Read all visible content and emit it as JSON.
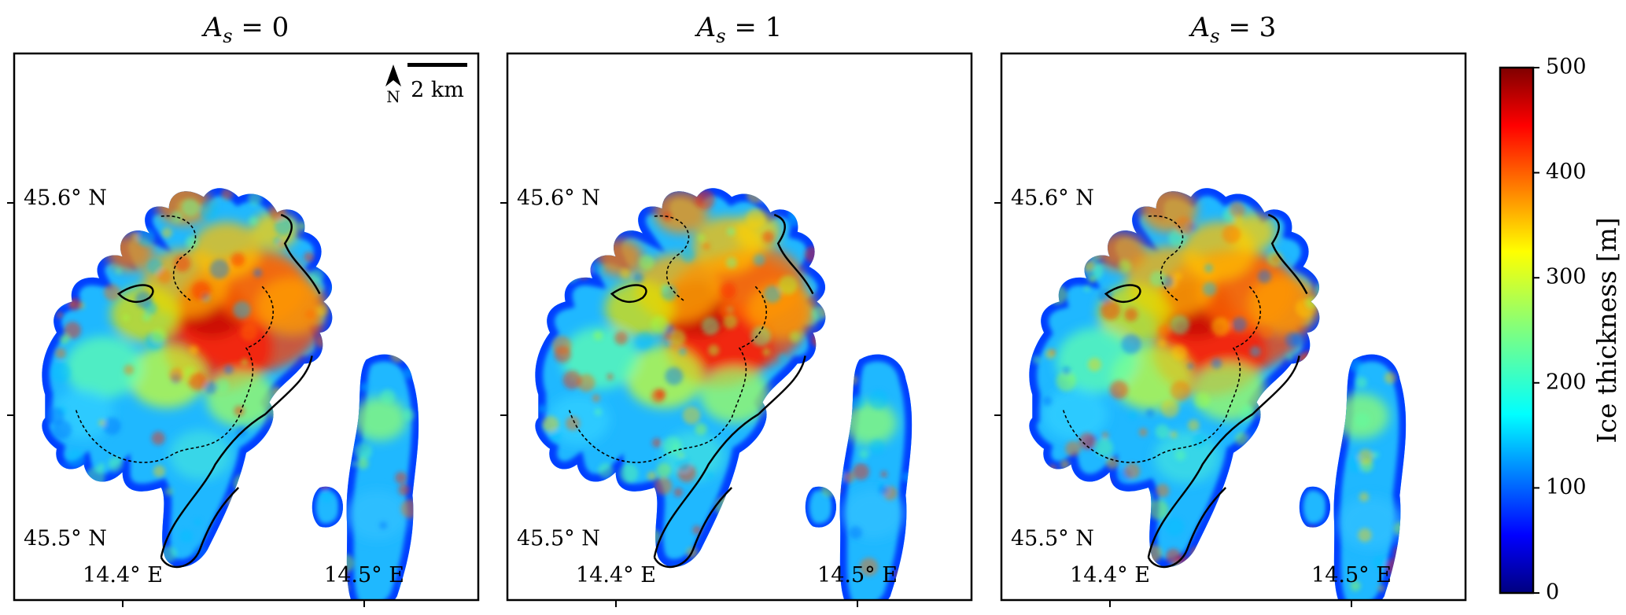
{
  "panels": [
    {
      "title_prefix": "A",
      "title_sub": "s",
      "title_suffix": " = 0",
      "variant": 0
    },
    {
      "title_prefix": "A",
      "title_sub": "s",
      "title_suffix": " = 1",
      "variant": 1
    },
    {
      "title_prefix": "A",
      "title_sub": "s",
      "title_suffix": " = 3",
      "variant": 2
    }
  ],
  "axes": {
    "lat_labels": [
      "45.6° N",
      "45.5° N"
    ],
    "lon_labels": [
      "14.4° E",
      "14.5° E"
    ]
  },
  "north_arrow": {
    "label": "N"
  },
  "scale_bar": {
    "label": "2 km"
  },
  "colorbar": {
    "label": "Ice thickness [m]",
    "ticks": [
      "0",
      "100",
      "200",
      "300",
      "400",
      "500"
    ],
    "min": 0,
    "max": 500,
    "colormap": "jet",
    "colors": [
      "#00007f",
      "#0000ff",
      "#007fff",
      "#00ffff",
      "#7fff7f",
      "#ffff00",
      "#ff7f00",
      "#ff0000",
      "#7f0000"
    ]
  }
}
